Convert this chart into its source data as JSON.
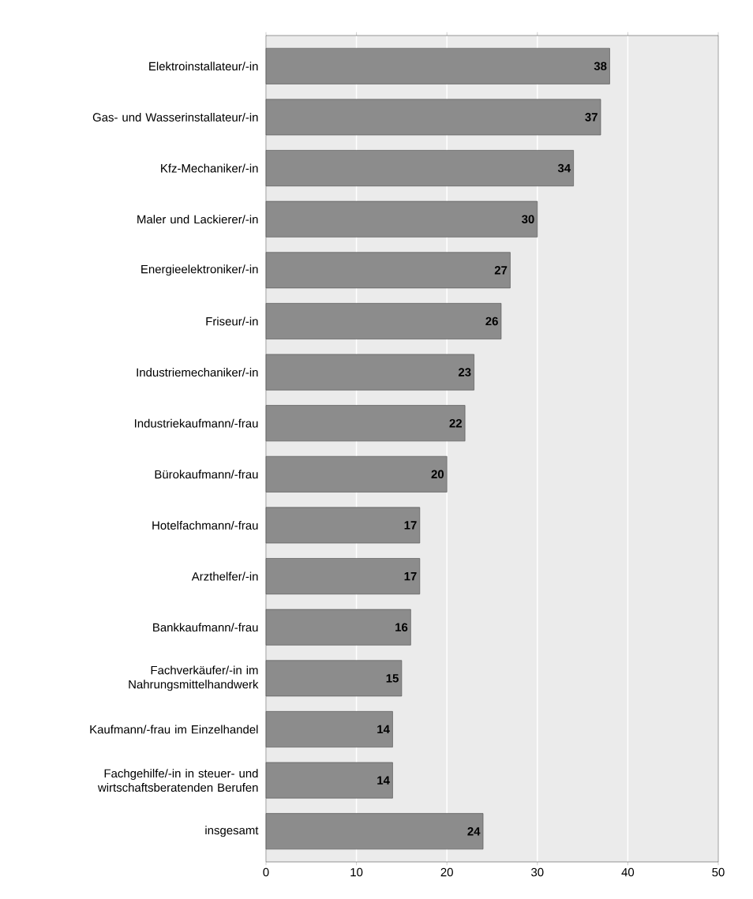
{
  "chart_data": {
    "type": "bar",
    "orientation": "horizontal",
    "categories": [
      "Elektroinstallateur/-in",
      "Gas- und Wasserinstallateur/-in",
      "Kfz-Mechaniker/-in",
      "Maler und Lackierer/-in",
      "Energieelektroniker/-in",
      "Friseur/-in",
      "Industriemechaniker/-in",
      "Industriekaufmann/-frau",
      "Bürokaufmann/-frau",
      "Hotelfachmann/-frau",
      "Arzthelfer/-in",
      "Bankkaufmann/-frau",
      "Fachverkäufer/-in im Nahrungsmittelhandwerk",
      "Kaufmann/-frau im Einzelhandel",
      "Fachgehilfe/-in in steuer- und wirtschaftsberatenden Berufen",
      "insgesamt"
    ],
    "values": [
      38,
      37,
      34,
      30,
      27,
      26,
      23,
      22,
      20,
      17,
      17,
      16,
      15,
      14,
      14,
      24
    ],
    "color": "#8c8c8c",
    "data_labels": true,
    "xlim": [
      0,
      50
    ],
    "xticks": [
      0,
      10,
      20,
      30,
      40,
      50
    ],
    "grid": "x"
  }
}
